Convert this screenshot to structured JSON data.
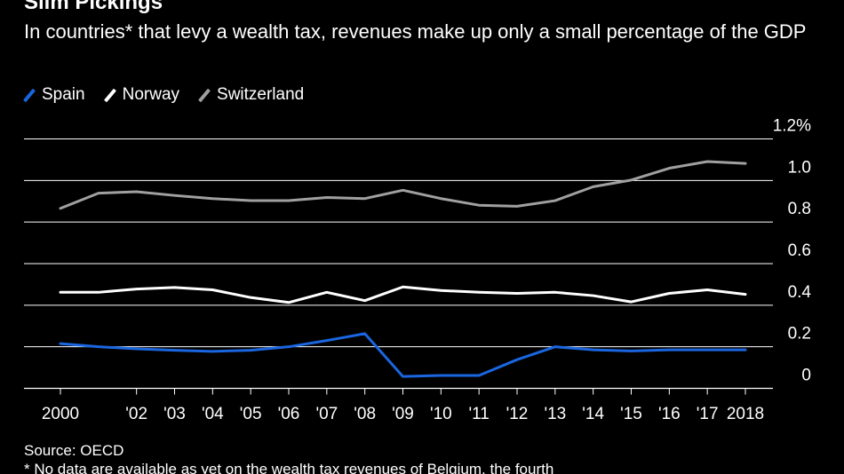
{
  "chart_data": {
    "type": "line",
    "title": "Slim Pickings",
    "subtitle": "In countries* that levy a wealth tax, revenues make up only a small percentage of the GDP",
    "x": [
      2000,
      2001,
      2002,
      2003,
      2004,
      2005,
      2006,
      2007,
      2008,
      2009,
      2010,
      2011,
      2012,
      2013,
      2014,
      2015,
      2016,
      2017,
      2018
    ],
    "x_tick_labels": [
      {
        "x": 2000,
        "label": "2000"
      },
      {
        "x": 2002,
        "label": "'02"
      },
      {
        "x": 2003,
        "label": "'03"
      },
      {
        "x": 2004,
        "label": "'04"
      },
      {
        "x": 2005,
        "label": "'05"
      },
      {
        "x": 2006,
        "label": "'06"
      },
      {
        "x": 2007,
        "label": "'07"
      },
      {
        "x": 2008,
        "label": "'08"
      },
      {
        "x": 2009,
        "label": "'09"
      },
      {
        "x": 2010,
        "label": "'10"
      },
      {
        "x": 2011,
        "label": "'11"
      },
      {
        "x": 2012,
        "label": "'12"
      },
      {
        "x": 2013,
        "label": "'13"
      },
      {
        "x": 2014,
        "label": "'14"
      },
      {
        "x": 2015,
        "label": "'15"
      },
      {
        "x": 2016,
        "label": "'16"
      },
      {
        "x": 2017,
        "label": "'17"
      },
      {
        "x": 2018,
        "label": "2018"
      }
    ],
    "y_ticks": [
      {
        "value": 0,
        "label": "0"
      },
      {
        "value": 0.2,
        "label": "0.2"
      },
      {
        "value": 0.4,
        "label": "0.4"
      },
      {
        "value": 0.6,
        "label": "0.6"
      },
      {
        "value": 0.8,
        "label": "0.8"
      },
      {
        "value": 1.0,
        "label": "1.0"
      },
      {
        "value": 1.2,
        "label": "1.2%"
      }
    ],
    "ylim": [
      0,
      1.2
    ],
    "xlim": [
      2000,
      2018
    ],
    "grid": true,
    "xlabel": "",
    "ylabel": "",
    "legend_position": "top-left",
    "series": [
      {
        "name": "Spain",
        "color": "#1a66e0",
        "values": [
          0.215,
          0.2,
          0.19,
          0.183,
          0.178,
          0.183,
          0.2,
          0.23,
          0.263,
          0.057,
          0.062,
          0.062,
          0.138,
          0.2,
          0.185,
          0.18,
          0.185,
          0.185,
          0.185
        ]
      },
      {
        "name": "Norway",
        "color": "#ffffff",
        "values": [
          0.462,
          0.462,
          0.478,
          0.485,
          0.474,
          0.437,
          0.413,
          0.462,
          0.422,
          0.488,
          0.471,
          0.462,
          0.457,
          0.462,
          0.446,
          0.416,
          0.457,
          0.474,
          0.452
        ]
      },
      {
        "name": "Switzerland",
        "color": "#a0a0a0",
        "values": [
          0.866,
          0.939,
          0.946,
          0.928,
          0.913,
          0.903,
          0.903,
          0.918,
          0.913,
          0.953,
          0.913,
          0.881,
          0.876,
          0.903,
          0.97,
          1.002,
          1.059,
          1.091,
          1.082
        ]
      }
    ],
    "source": "Source: OECD",
    "footnote": "* No data are available as yet on the wealth tax revenues of Belgium, the fourth"
  },
  "styles": {
    "background": "#000000",
    "gridline_color": "#ffffff",
    "text_color": "#ffffff"
  }
}
